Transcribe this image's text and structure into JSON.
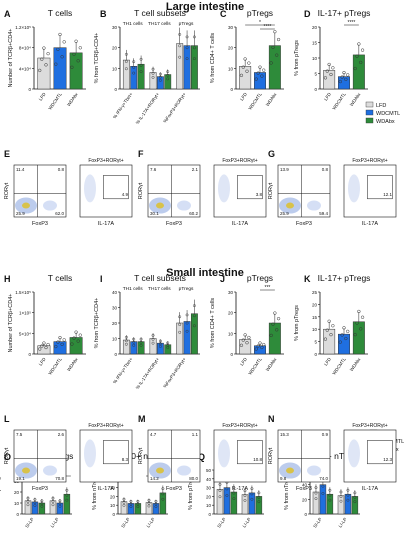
{
  "sections": {
    "large": "Large intestine",
    "small": "Small intestine"
  },
  "legend": {
    "items": [
      {
        "label": "LFD",
        "color": "#dcdcdc"
      },
      {
        "label": "WDCMTL",
        "color": "#1f6fe0"
      },
      {
        "label": "WDAbx",
        "color": "#2e8b3a"
      }
    ]
  },
  "legend_small": {
    "items": [
      {
        "label": "LFD",
        "color": "#dcdcdc"
      },
      {
        "label": "WDCMTL",
        "color": "#1f6fe0"
      },
      {
        "label": "WDAbx",
        "color": "#2e8b3a"
      }
    ]
  },
  "colors": {
    "lfd": "#dcdcdc",
    "cmtl": "#1f6fe0",
    "abx": "#2e8b3a",
    "dot": "#2e8b3a"
  },
  "flow_labels": {
    "gate_title": "FoxP3+RORγt+",
    "foxp3": "FoxP3",
    "rorgt": "RORγt",
    "il17a": "IL-17A"
  },
  "chart_data": [
    {
      "id": "A",
      "type": "bar",
      "title": "T cells",
      "ylabel": "Number of TCRβ+CD4+",
      "categories": [
        "LFD",
        "WDCMTL",
        "WDAbx"
      ],
      "values": [
        6,
        8,
        7
      ],
      "ylim": [
        0,
        12
      ],
      "yticks": [
        "0",
        "4×10⁴",
        "8×10⁴",
        "1.2×10⁵"
      ],
      "sig": []
    },
    {
      "id": "B",
      "type": "bar",
      "title": "T cell subsets",
      "ylabel": "% from TCRβ+CD4+",
      "group_labels": [
        "TH1 cells",
        "TH17 cells",
        "pTregs"
      ],
      "categories": [
        "% IFN-γ+Tbet+",
        "% IL-17A+RORγt+",
        "%FoxP3+RORγt+"
      ],
      "series": [
        {
          "name": "LFD",
          "values": [
            14,
            8,
            22
          ]
        },
        {
          "name": "WDCMTL",
          "values": [
            11,
            6,
            21
          ]
        },
        {
          "name": "WDAbx",
          "values": [
            12,
            7,
            21
          ]
        }
      ],
      "ylim": [
        0,
        30
      ],
      "yticks": [
        "0",
        "10",
        "20",
        "30"
      ]
    },
    {
      "id": "C",
      "type": "bar",
      "title": "pTregs",
      "ylabel": "% from CD4+ T cells",
      "categories": [
        "LFD",
        "WDCMTL",
        "WDAbx"
      ],
      "values": [
        11,
        8,
        21
      ],
      "ylim": [
        0,
        30
      ],
      "yticks": [
        "0",
        "10",
        "20",
        "30"
      ],
      "sig": [
        "*",
        "****"
      ]
    },
    {
      "id": "D",
      "type": "bar",
      "title": "IL-17+ pTregs",
      "ylabel": "% from pTregs",
      "categories": [
        "LFD",
        "WDCMTL",
        "WDAbx"
      ],
      "values": [
        6,
        4,
        11
      ],
      "ylim": [
        0,
        20
      ],
      "yticks": [
        "0",
        "5",
        "10",
        "15",
        "20"
      ],
      "sig": [
        "****"
      ]
    },
    {
      "id": "H",
      "type": "bar",
      "title": "T cells",
      "ylabel": "Number of TCRβ+CD4+",
      "categories": [
        "LFD",
        "WDCMTL",
        "WDAbx"
      ],
      "values": [
        2,
        3,
        4
      ],
      "ylim": [
        0,
        15
      ],
      "yticks": [
        "0",
        "5×10⁴",
        "1×10⁵",
        "1.5×10⁵"
      ],
      "sig": []
    },
    {
      "id": "I",
      "type": "bar",
      "title": "T cell subsets",
      "ylabel": "% from TCRβ+CD4+",
      "group_labels": [
        "TH1 cells",
        "TH17 cells",
        "pTregs"
      ],
      "categories": [
        "% IFN-γ+Tbet+",
        "% IL-17A+RORγt+",
        "%FoxP3+RORγt+"
      ],
      "series": [
        {
          "name": "LFD",
          "values": [
            9,
            10,
            20
          ]
        },
        {
          "name": "WDCMTL",
          "values": [
            8,
            7,
            21
          ]
        },
        {
          "name": "WDAbx",
          "values": [
            8,
            6,
            26
          ]
        }
      ],
      "ylim": [
        0,
        40
      ],
      "yticks": [
        "0",
        "10",
        "20",
        "30",
        "40"
      ]
    },
    {
      "id": "J",
      "type": "bar",
      "title": "pTregs",
      "ylabel": "% from CD4+ T cells",
      "categories": [
        "LFD",
        "WDCMTL",
        "WDAbx"
      ],
      "values": [
        7,
        4,
        15
      ],
      "ylim": [
        0,
        30
      ],
      "yticks": [
        "0",
        "10",
        "20",
        "30"
      ],
      "sig": [
        "***"
      ]
    },
    {
      "id": "K",
      "type": "bar",
      "title": "IL-17+ pTregs",
      "ylabel": "% from pTregs",
      "categories": [
        "LFD",
        "WDCMTL",
        "WDAbx"
      ],
      "values": [
        10,
        8,
        13
      ],
      "ylim": [
        0,
        25
      ],
      "yticks": [
        "0",
        "5",
        "10",
        "15",
        "20",
        "25"
      ],
      "sig": []
    },
    {
      "id": "O",
      "type": "bar",
      "title": "IL-10+ pTregs",
      "ylabel": "% from pTregs",
      "categories": [
        "SI-LP",
        "LI-LP"
      ],
      "series": [
        {
          "name": "LFD",
          "values": [
            12,
            12
          ]
        },
        {
          "name": "WDCMTL",
          "values": [
            11,
            10
          ]
        },
        {
          "name": "WDAbx",
          "values": [
            10,
            18
          ]
        }
      ],
      "ylim": [
        0,
        40
      ],
      "yticks": [
        "0",
        "10",
        "20",
        "30",
        "40"
      ],
      "sig": [
        "****"
      ]
    },
    {
      "id": "P",
      "type": "bar",
      "title": "IL-10+ nTregs",
      "ylabel": "% from nTregs",
      "categories": [
        "SI-LP",
        "LI-LP"
      ],
      "series": [
        {
          "name": "LFD",
          "values": [
            14,
            13
          ]
        },
        {
          "name": "WDCMTL",
          "values": [
            12,
            12
          ]
        },
        {
          "name": "WDAbx",
          "values": [
            12,
            24
          ]
        }
      ],
      "ylim": [
        0,
        50
      ],
      "yticks": [
        "0",
        "10",
        "20",
        "30",
        "40",
        "50"
      ],
      "sig": [
        "***"
      ]
    },
    {
      "id": "Q",
      "type": "bar",
      "title": "Ki67+ pTregs",
      "ylabel": "% from pTregs",
      "categories": [
        "SI-LP",
        "LI-LP"
      ],
      "series": [
        {
          "name": "LFD",
          "values": [
            28,
            22
          ]
        },
        {
          "name": "WDCMTL",
          "values": [
            30,
            24
          ]
        },
        {
          "name": "WDAbx",
          "values": [
            25,
            20
          ]
        }
      ],
      "ylim": [
        0,
        50
      ],
      "yticks": [
        "0",
        "10",
        "20",
        "30",
        "40",
        "50"
      ],
      "sig": []
    },
    {
      "id": "R",
      "type": "bar",
      "title": "Ki67+ nTregs",
      "ylabel": "% from nTregs",
      "categories": [
        "SI-LP",
        "LI-LP"
      ],
      "series": [
        {
          "name": "LFD",
          "values": [
            30,
            25
          ]
        },
        {
          "name": "WDCMTL",
          "values": [
            40,
            27
          ]
        },
        {
          "name": "WDAbx",
          "values": [
            27,
            24
          ]
        }
      ],
      "ylim": [
        0,
        60
      ],
      "yticks": [
        "0",
        "20",
        "40",
        "60"
      ],
      "sig": []
    }
  ],
  "flow_panels": [
    {
      "id": "E",
      "q": [
        "11.4",
        "0.8",
        "25.9",
        "62.0"
      ],
      "gate": "4.9"
    },
    {
      "id": "F",
      "q": [
        "7.6",
        "2.1",
        "30.1",
        "60.2"
      ],
      "gate": "3.8"
    },
    {
      "id": "G",
      "q": [
        "13.9",
        "0.8",
        "25.9",
        "59.4"
      ],
      "gate": "12.1"
    },
    {
      "id": "L",
      "q": [
        "7.5",
        "2.6",
        "19.1",
        "70.8"
      ],
      "gate": "8.3"
    },
    {
      "id": "M",
      "q": [
        "4.7",
        "1.1",
        "14.2",
        "80.0"
      ],
      "gate": "10.8"
    },
    {
      "id": "N",
      "q": [
        "15.3",
        "0.9",
        "9.8",
        "74.0"
      ],
      "gate": "12.3"
    }
  ]
}
